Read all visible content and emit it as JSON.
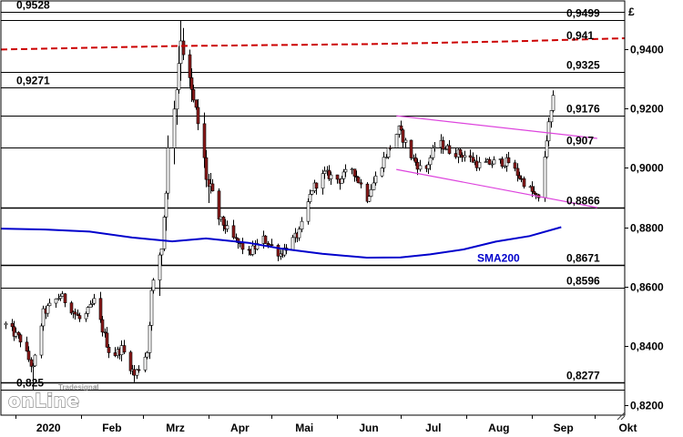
{
  "currency_symbol": "£",
  "brand": {
    "small": "Tradesignal",
    "reg": "®",
    "big": "onLine"
  },
  "colors": {
    "candle_up": "#ffffff",
    "candle_down": "#8b1a1a",
    "sma200": "#0000cc",
    "resistance_dashed": "#cc0000",
    "channel": "#dd44dd",
    "level_line": "#000000"
  },
  "chart_data": {
    "type": "candlestick",
    "instrument_currency": "£",
    "ylim": [
      0.8165,
      0.9555
    ],
    "y_ticks": [
      0.82,
      0.84,
      0.86,
      0.88,
      0.9,
      0.92,
      0.94
    ],
    "y_tick_labels": [
      "0,8200",
      "0,8400",
      "0,8600",
      "0,8800",
      "0,9000",
      "0,9200",
      "0,9400"
    ],
    "x_ticks": [
      "2020",
      "Feb",
      "Mrz",
      "Apr",
      "Mai",
      "Jun",
      "Jul",
      "Aug",
      "Sep",
      "Okt"
    ],
    "x_range": [
      "2019-12-25",
      "2020-10-15"
    ],
    "grid": false,
    "horizontal_levels": [
      {
        "value": 0.9528,
        "label": "0,9528",
        "side": "left"
      },
      {
        "value": 0.9499,
        "label": "0,9499",
        "side": "right"
      },
      {
        "value": 0.9325,
        "label": "0,9325",
        "side": "right"
      },
      {
        "value": 0.9271,
        "label": "0,9271",
        "side": "left"
      },
      {
        "value": 0.9176,
        "label": "0,9176",
        "side": "right"
      },
      {
        "value": 0.907,
        "label": "0,907",
        "side": "right"
      },
      {
        "value": 0.8866,
        "label": "0,8866",
        "side": "right"
      },
      {
        "value": 0.8671,
        "label": "0,8671",
        "side": "right"
      },
      {
        "value": 0.8596,
        "label": "0,8596",
        "side": "right"
      },
      {
        "value": 0.8277,
        "label": "0,8277",
        "side": "right"
      },
      {
        "value": 0.825,
        "label": "0,825",
        "side": "left"
      }
    ],
    "resistance_line": {
      "label": "0,941",
      "points": [
        [
          "2019-12-25",
          0.94
        ],
        [
          "2020-03-18",
          0.9412
        ],
        [
          "2020-06-15",
          0.9418
        ],
        [
          "2020-08-25",
          0.9428
        ],
        [
          "2020-10-15",
          0.9438
        ]
      ]
    },
    "channel_lines": [
      {
        "points": [
          [
            "2020-06-29",
            0.9176
          ],
          [
            "2020-10-02",
            0.91
          ]
        ]
      },
      {
        "points": [
          [
            "2020-06-29",
            0.8995
          ],
          [
            "2020-10-02",
            0.8866
          ]
        ]
      }
    ],
    "sma200": {
      "label": "SMA200",
      "points": [
        [
          "2019-12-25",
          0.8795
        ],
        [
          "2020-01-15",
          0.8792
        ],
        [
          "2020-02-05",
          0.8785
        ],
        [
          "2020-02-25",
          0.8765
        ],
        [
          "2020-03-15",
          0.8752
        ],
        [
          "2020-03-31",
          0.8762
        ],
        [
          "2020-04-20",
          0.8747
        ],
        [
          "2020-05-05",
          0.8728
        ],
        [
          "2020-05-25",
          0.871
        ],
        [
          "2020-06-15",
          0.8697
        ],
        [
          "2020-07-01",
          0.8698
        ],
        [
          "2020-07-15",
          0.8708
        ],
        [
          "2020-07-31",
          0.8725
        ],
        [
          "2020-08-15",
          0.8751
        ],
        [
          "2020-08-31",
          0.877
        ],
        [
          "2020-09-15",
          0.88
        ]
      ]
    },
    "series_ohlc_anchors": [
      [
        "2019-12-27",
        0.847
      ],
      [
        "2020-01-03",
        0.842
      ],
      [
        "2020-01-09",
        0.832
      ],
      [
        "2020-01-14",
        0.851
      ],
      [
        "2020-01-22",
        0.857
      ],
      [
        "2020-02-01",
        0.848
      ],
      [
        "2020-02-07",
        0.855
      ],
      [
        "2020-02-15",
        0.836
      ],
      [
        "2020-02-20",
        0.839
      ],
      [
        "2020-02-26",
        0.83
      ],
      [
        "2020-03-03",
        0.838
      ],
      [
        "2020-03-05",
        0.858
      ],
      [
        "2020-03-10",
        0.874
      ],
      [
        "2020-03-13",
        0.905
      ],
      [
        "2020-03-17",
        0.928
      ],
      [
        "2020-03-19",
        0.945
      ],
      [
        "2020-03-22",
        0.931
      ],
      [
        "2020-03-27",
        0.915
      ],
      [
        "2020-04-01",
        0.893
      ],
      [
        "2020-04-06",
        0.883
      ],
      [
        "2020-04-13",
        0.876
      ],
      [
        "2020-04-20",
        0.871
      ],
      [
        "2020-04-27",
        0.876
      ],
      [
        "2020-05-05",
        0.871
      ],
      [
        "2020-05-14",
        0.878
      ],
      [
        "2020-05-20",
        0.893
      ],
      [
        "2020-05-26",
        0.898
      ],
      [
        "2020-06-02",
        0.896
      ],
      [
        "2020-06-08",
        0.9
      ],
      [
        "2020-06-15",
        0.89
      ],
      [
        "2020-06-21",
        0.9
      ],
      [
        "2020-06-25",
        0.906
      ],
      [
        "2020-06-30",
        0.913
      ],
      [
        "2020-07-06",
        0.904
      ],
      [
        "2020-07-12",
        0.898
      ],
      [
        "2020-07-18",
        0.909
      ],
      [
        "2020-07-24",
        0.906
      ],
      [
        "2020-08-01",
        0.904
      ],
      [
        "2020-08-07",
        0.901
      ],
      [
        "2020-08-15",
        0.902
      ],
      [
        "2020-08-21",
        0.902
      ],
      [
        "2020-08-27",
        0.896
      ],
      [
        "2020-09-02",
        0.891
      ],
      [
        "2020-09-04",
        0.889
      ],
      [
        "2020-09-06",
        0.898
      ],
      [
        "2020-09-08",
        0.91
      ],
      [
        "2020-09-11",
        0.923
      ]
    ]
  }
}
